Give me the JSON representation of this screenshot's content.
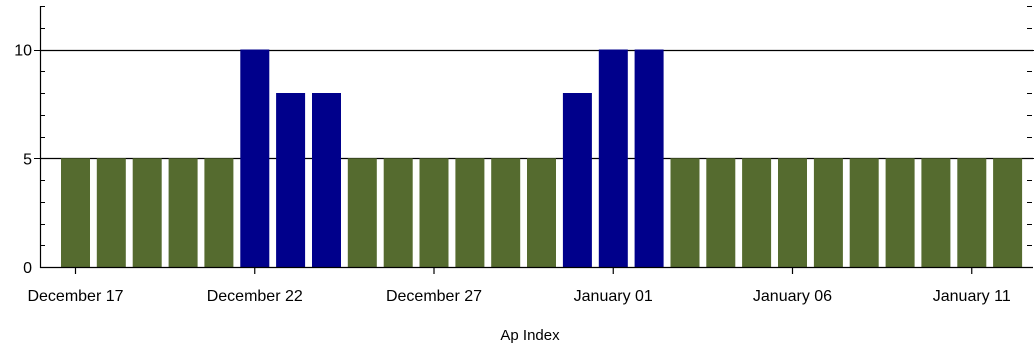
{
  "chart_data": {
    "type": "bar",
    "title": "",
    "xlabel": "Ap Index",
    "ylabel": "",
    "ylim": [
      0,
      12
    ],
    "yticks": [
      0,
      5,
      10
    ],
    "x_tick_labels": [
      {
        "date": "2012-12-17",
        "label": "December 17"
      },
      {
        "date": "2012-12-22",
        "label": "December 22"
      },
      {
        "date": "2012-12-27",
        "label": "December 27"
      },
      {
        "date": "2013-01-01",
        "label": "January 01"
      },
      {
        "date": "2013-01-06",
        "label": "January 06"
      },
      {
        "date": "2013-01-11",
        "label": "January 11"
      }
    ],
    "gridlines": [
      5,
      10
    ],
    "colors": {
      "normal": "#556b2f",
      "elevated": "#00008b",
      "axis": "#000000",
      "grid": "#000000"
    },
    "bars": [
      {
        "date": "2012-12-17",
        "value": 5,
        "level": "normal"
      },
      {
        "date": "2012-12-18",
        "value": 5,
        "level": "normal"
      },
      {
        "date": "2012-12-19",
        "value": 5,
        "level": "normal"
      },
      {
        "date": "2012-12-20",
        "value": 5,
        "level": "normal"
      },
      {
        "date": "2012-12-21",
        "value": 5,
        "level": "normal"
      },
      {
        "date": "2012-12-22",
        "value": 10,
        "level": "elevated"
      },
      {
        "date": "2012-12-23",
        "value": 8,
        "level": "elevated"
      },
      {
        "date": "2012-12-24",
        "value": 8,
        "level": "elevated"
      },
      {
        "date": "2012-12-25",
        "value": 5,
        "level": "normal"
      },
      {
        "date": "2012-12-26",
        "value": 5,
        "level": "normal"
      },
      {
        "date": "2012-12-27",
        "value": 5,
        "level": "normal"
      },
      {
        "date": "2012-12-28",
        "value": 5,
        "level": "normal"
      },
      {
        "date": "2012-12-29",
        "value": 5,
        "level": "normal"
      },
      {
        "date": "2012-12-30",
        "value": 5,
        "level": "normal"
      },
      {
        "date": "2012-12-31",
        "value": 8,
        "level": "elevated"
      },
      {
        "date": "2013-01-01",
        "value": 10,
        "level": "elevated"
      },
      {
        "date": "2013-01-02",
        "value": 10,
        "level": "elevated"
      },
      {
        "date": "2013-01-03",
        "value": 5,
        "level": "normal"
      },
      {
        "date": "2013-01-04",
        "value": 5,
        "level": "normal"
      },
      {
        "date": "2013-01-05",
        "value": 5,
        "level": "normal"
      },
      {
        "date": "2013-01-06",
        "value": 5,
        "level": "normal"
      },
      {
        "date": "2013-01-07",
        "value": 5,
        "level": "normal"
      },
      {
        "date": "2013-01-08",
        "value": 5,
        "level": "normal"
      },
      {
        "date": "2013-01-09",
        "value": 5,
        "level": "normal"
      },
      {
        "date": "2013-01-10",
        "value": 5,
        "level": "normal"
      },
      {
        "date": "2013-01-11",
        "value": 5,
        "level": "normal"
      },
      {
        "date": "2013-01-12",
        "value": 5,
        "level": "normal"
      }
    ]
  }
}
